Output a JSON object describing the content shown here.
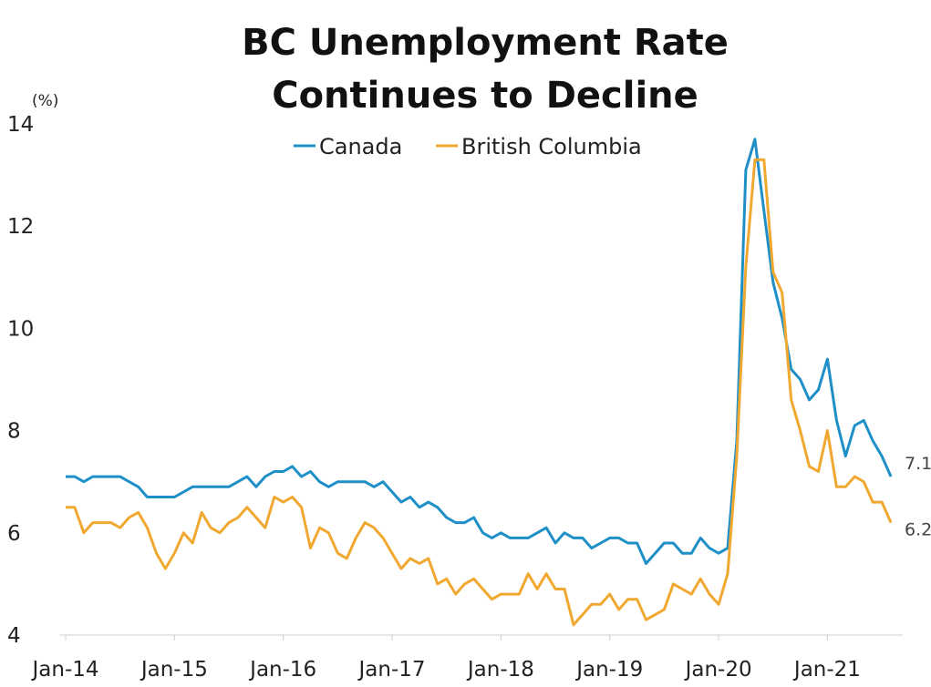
{
  "chart_data": {
    "type": "line",
    "title_lines": [
      "BC Unemployment Rate",
      "Continues to Decline"
    ],
    "y_unit": "(%)",
    "ylim": [
      4,
      14
    ],
    "y_ticks": [
      "4",
      "6",
      "8",
      "10",
      "12",
      "14"
    ],
    "x_ticks": [
      "Jan-14",
      "Jan-15",
      "Jan-16",
      "Jan-17",
      "Jan-18",
      "Jan-19",
      "Jan-20",
      "Jan-21"
    ],
    "x_range_months": [
      0,
      92
    ],
    "grid": false,
    "legend_position": "top-center",
    "series": [
      {
        "name": "Canada",
        "color": "#1f8fc8",
        "end_label": "7.1",
        "values": [
          7.1,
          7.1,
          7.0,
          7.1,
          7.1,
          7.1,
          7.1,
          7.0,
          6.9,
          6.7,
          6.7,
          6.7,
          6.7,
          6.8,
          6.9,
          6.9,
          6.9,
          6.9,
          6.9,
          7.0,
          7.1,
          6.9,
          7.1,
          7.2,
          7.2,
          7.3,
          7.1,
          7.2,
          7.0,
          6.9,
          7.0,
          7.0,
          7.0,
          7.0,
          6.9,
          7.0,
          6.8,
          6.6,
          6.7,
          6.5,
          6.6,
          6.5,
          6.3,
          6.2,
          6.2,
          6.3,
          6.0,
          5.9,
          6.0,
          5.9,
          5.9,
          5.9,
          6.0,
          6.1,
          5.8,
          6.0,
          5.9,
          5.9,
          5.7,
          5.8,
          5.9,
          5.9,
          5.8,
          5.8,
          5.4,
          5.6,
          5.8,
          5.8,
          5.6,
          5.6,
          5.9,
          5.7,
          5.6,
          5.7,
          7.8,
          13.1,
          13.7,
          12.3,
          10.9,
          10.2,
          9.2,
          9.0,
          8.6,
          8.8,
          9.4,
          8.2,
          7.5,
          8.1,
          8.2,
          7.8,
          7.5,
          7.1
        ]
      },
      {
        "name": "British Columbia",
        "color": "#f0a830",
        "end_label": "6.2",
        "values": [
          6.5,
          6.5,
          6.0,
          6.2,
          6.2,
          6.2,
          6.1,
          6.3,
          6.4,
          6.1,
          5.6,
          5.3,
          5.6,
          6.0,
          5.8,
          6.4,
          6.1,
          6.0,
          6.2,
          6.3,
          6.5,
          6.3,
          6.1,
          6.7,
          6.6,
          6.7,
          6.5,
          5.7,
          6.1,
          6.0,
          5.6,
          5.5,
          5.9,
          6.2,
          6.1,
          5.9,
          5.6,
          5.3,
          5.5,
          5.4,
          5.5,
          5.0,
          5.1,
          4.8,
          5.0,
          5.1,
          4.9,
          4.7,
          4.8,
          4.8,
          4.8,
          5.2,
          4.9,
          5.2,
          4.9,
          4.9,
          4.2,
          4.4,
          4.6,
          4.6,
          4.8,
          4.5,
          4.7,
          4.7,
          4.3,
          4.4,
          4.5,
          5.0,
          4.9,
          4.8,
          5.1,
          4.8,
          4.6,
          5.2,
          7.5,
          11.2,
          13.3,
          13.3,
          11.1,
          10.7,
          8.6,
          8.0,
          7.3,
          7.2,
          8.0,
          6.9,
          6.9,
          7.1,
          7.0,
          6.6,
          6.6,
          6.2
        ]
      }
    ]
  }
}
